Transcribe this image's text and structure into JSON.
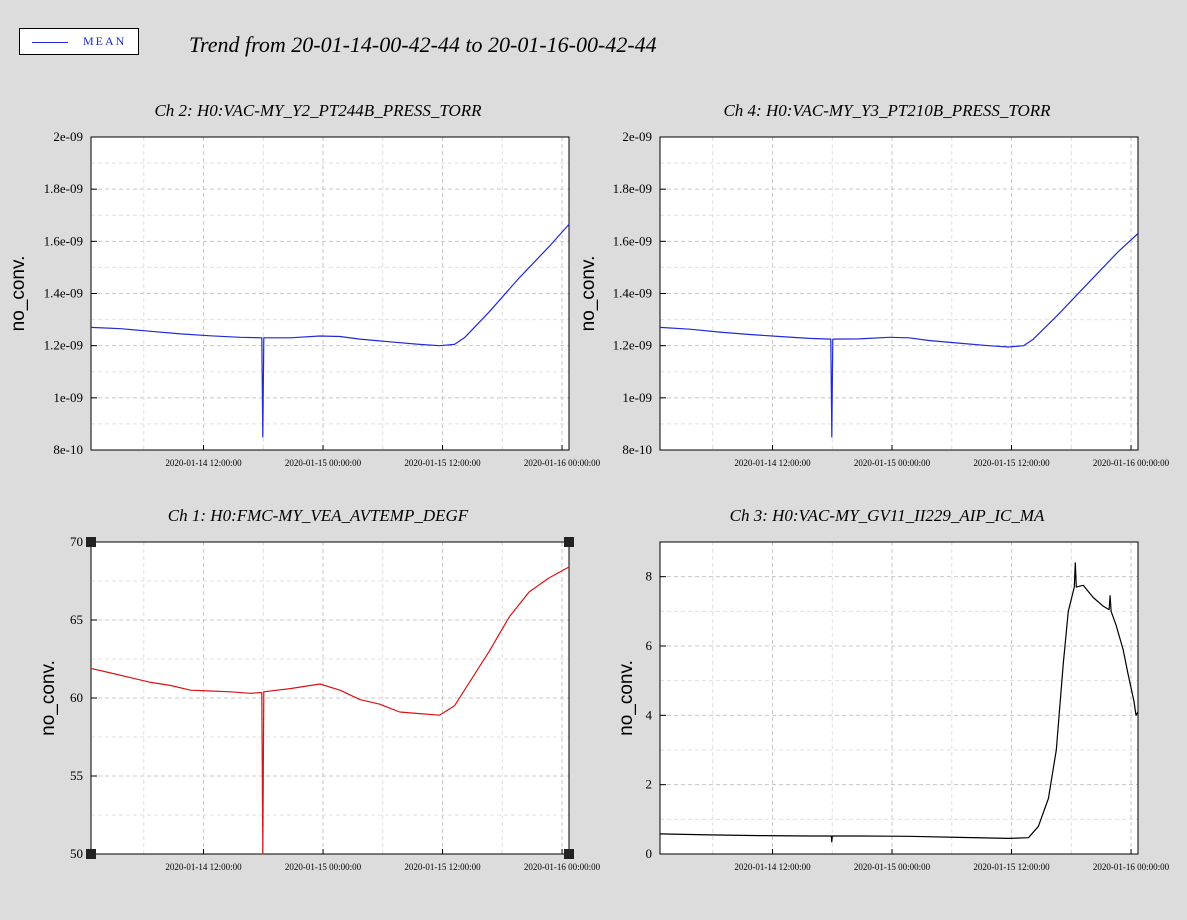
{
  "legend": {
    "label": "MEAN",
    "color": "#1f2ad8"
  },
  "title": "Trend from 20-01-14-00-42-44 to 20-01-16-00-42-44",
  "chart_data": [
    {
      "id": "ch2",
      "type": "line",
      "title": "Ch 2: H0:VAC-MY_Y2_PT244B_PRESS_TORR",
      "ylabel": "no_conv.",
      "xlabel": "",
      "ylim": [
        8e-10,
        2e-09
      ],
      "yticks": [
        8e-10,
        1e-09,
        1.2e-09,
        1.4e-09,
        1.6e-09,
        1.8e-09,
        2e-09
      ],
      "ytick_labels": [
        "8e-10",
        "1e-09",
        "1.2e-09",
        "1.4e-09",
        "1.6e-09",
        "1.8e-09",
        "2e-09"
      ],
      "xlim": [
        0,
        48
      ],
      "xticks": [
        11.3,
        23.3,
        35.3,
        47.3
      ],
      "xtick_labels": [
        "2020-01-14 12:00:00",
        "2020-01-15 00:00:00",
        "2020-01-15 12:00:00",
        "2020-01-16 00:00:00"
      ],
      "x_unit": "hours since 2020-01-14 00:42:44",
      "grid": true,
      "series": [
        {
          "name": "MEAN",
          "color": "#1f2ad8",
          "x": [
            0,
            3,
            6,
            9,
            12,
            15,
            17.15,
            17.2,
            17.25,
            17.3,
            17.35,
            20,
            23,
            25,
            27,
            30,
            33,
            35,
            36.5,
            37.5,
            40,
            43,
            46,
            48
          ],
          "y": [
            1.27e-09,
            1.265e-09,
            1.255e-09,
            1.245e-09,
            1.238e-09,
            1.232e-09,
            1.23e-09,
            1.04e-09,
            8.5e-10,
            1.04e-09,
            1.23e-09,
            1.23e-09,
            1.237e-09,
            1.235e-09,
            1.225e-09,
            1.215e-09,
            1.205e-09,
            1.2e-09,
            1.205e-09,
            1.23e-09,
            1.33e-09,
            1.46e-09,
            1.58e-09,
            1.665e-09
          ]
        }
      ]
    },
    {
      "id": "ch4",
      "type": "line",
      "title": "Ch 4: H0:VAC-MY_Y3_PT210B_PRESS_TORR",
      "ylabel": "no_conv.",
      "xlabel": "",
      "ylim": [
        8e-10,
        2e-09
      ],
      "yticks": [
        8e-10,
        1e-09,
        1.2e-09,
        1.4e-09,
        1.6e-09,
        1.8e-09,
        2e-09
      ],
      "ytick_labels": [
        "8e-10",
        "1e-09",
        "1.2e-09",
        "1.4e-09",
        "1.6e-09",
        "1.8e-09",
        "2e-09"
      ],
      "xlim": [
        0,
        48
      ],
      "xticks": [
        11.3,
        23.3,
        35.3,
        47.3
      ],
      "xtick_labels": [
        "2020-01-14 12:00:00",
        "2020-01-15 00:00:00",
        "2020-01-15 12:00:00",
        "2020-01-16 00:00:00"
      ],
      "x_unit": "hours since 2020-01-14 00:42:44",
      "grid": true,
      "series": [
        {
          "name": "MEAN",
          "color": "#1f2ad8",
          "x": [
            0,
            3,
            6,
            9,
            12,
            15,
            17.15,
            17.2,
            17.25,
            17.3,
            17.35,
            20,
            23,
            25,
            27,
            30,
            33,
            35,
            36.5,
            37.5,
            40,
            43,
            46,
            48
          ],
          "y": [
            1.27e-09,
            1.263e-09,
            1.252e-09,
            1.243e-09,
            1.235e-09,
            1.228e-09,
            1.225e-09,
            1.04e-09,
            8.5e-10,
            1.04e-09,
            1.225e-09,
            1.226e-09,
            1.232e-09,
            1.23e-09,
            1.22e-09,
            1.21e-09,
            1.2e-09,
            1.195e-09,
            1.2e-09,
            1.225e-09,
            1.32e-09,
            1.44e-09,
            1.56e-09,
            1.63e-09
          ]
        }
      ]
    },
    {
      "id": "ch1",
      "type": "line",
      "title": "Ch 1: H0:FMC-MY_VEA_AVTEMP_DEGF",
      "ylabel": "no_conv.",
      "xlabel": "",
      "ylim": [
        50,
        70
      ],
      "yticks": [
        50,
        55,
        60,
        65,
        70
      ],
      "ytick_labels": [
        "50",
        "55",
        "60",
        "65",
        "70"
      ],
      "xlim": [
        0,
        48
      ],
      "xticks": [
        11.3,
        23.3,
        35.3,
        47.3
      ],
      "xtick_labels": [
        "2020-01-14 12:00:00",
        "2020-01-15 00:00:00",
        "2020-01-15 12:00:00",
        "2020-01-16 00:00:00"
      ],
      "x_unit": "hours since 2020-01-14 00:42:44",
      "grid": true,
      "series": [
        {
          "name": "MEAN",
          "color": "#d81414",
          "x": [
            0,
            2,
            4,
            6,
            8,
            10,
            12,
            14,
            16,
            17.15,
            17.2,
            17.25,
            17.3,
            17.35,
            20,
            23,
            25,
            27,
            29,
            31,
            33,
            35,
            36.5,
            38,
            40,
            42,
            44,
            46,
            48
          ],
          "y": [
            61.9,
            61.6,
            61.3,
            61.0,
            60.8,
            60.5,
            60.45,
            60.4,
            60.3,
            60.35,
            55.3,
            50.0,
            55.3,
            60.4,
            60.6,
            60.9,
            60.5,
            59.9,
            59.6,
            59.1,
            59.0,
            58.9,
            59.5,
            61.0,
            63.0,
            65.2,
            66.8,
            67.7,
            68.4
          ]
        }
      ]
    },
    {
      "id": "ch3",
      "type": "line",
      "title": "Ch 3: H0:VAC-MY_GV11_II229_AIP_IC_MA",
      "ylabel": "no_conv.",
      "xlabel": "",
      "ylim": [
        0,
        9
      ],
      "yticks": [
        0,
        2,
        4,
        6,
        8
      ],
      "ytick_labels": [
        "0",
        "2",
        "4",
        "6",
        "8"
      ],
      "xlim": [
        0,
        48
      ],
      "xticks": [
        11.3,
        23.3,
        35.3,
        47.3
      ],
      "xtick_labels": [
        "2020-01-14 12:00:00",
        "2020-01-15 00:00:00",
        "2020-01-15 12:00:00",
        "2020-01-16 00:00:00"
      ],
      "x_unit": "hours since 2020-01-14 00:42:44",
      "grid": true,
      "series": [
        {
          "name": "MEAN",
          "color": "#000000",
          "x": [
            0,
            5,
            10,
            15,
            17.2,
            17.25,
            17.3,
            20,
            25,
            30,
            35,
            37,
            38,
            39,
            39.8,
            40.5,
            41,
            41.6,
            41.7,
            41.8,
            42.5,
            43.5,
            44.5,
            45.1,
            45.2,
            45.3,
            45.8,
            46.5,
            47,
            47.6,
            47.8,
            48
          ],
          "y": [
            0.58,
            0.55,
            0.53,
            0.52,
            0.52,
            0.35,
            0.52,
            0.52,
            0.51,
            0.48,
            0.45,
            0.47,
            0.8,
            1.6,
            3.0,
            5.5,
            7.0,
            7.7,
            8.4,
            7.7,
            7.75,
            7.4,
            7.15,
            7.05,
            7.45,
            7.0,
            6.6,
            5.9,
            5.2,
            4.4,
            4.0,
            4.1
          ]
        }
      ]
    }
  ]
}
